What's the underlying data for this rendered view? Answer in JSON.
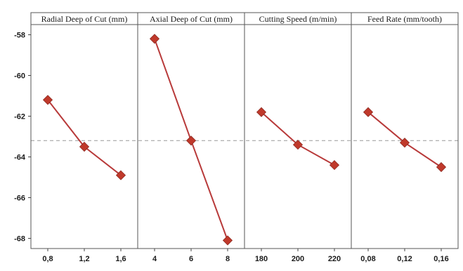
{
  "chart_data": {
    "type": "line",
    "title": "",
    "ylabel": "",
    "ylim": [
      -68.5,
      -57.5
    ],
    "y_ticks": [
      -58,
      -60,
      -62,
      -64,
      -66,
      -68
    ],
    "y_tick_labels": [
      "-58",
      "-60",
      "-62",
      "-64",
      "-66",
      "-68"
    ],
    "reference_line": {
      "y": -63.2,
      "style": "dashed"
    },
    "grid": false,
    "colors": {
      "line": "#b83a3a",
      "marker": "#c0392b",
      "reference": "#999999"
    },
    "panels": [
      {
        "title": "Radial Deep of Cut (mm)",
        "categories": [
          "0,8",
          "1,2",
          "1,6"
        ],
        "values": [
          -61.2,
          -63.5,
          -64.9
        ]
      },
      {
        "title": "Axial Deep of Cut (mm)",
        "categories": [
          "4",
          "6",
          "8"
        ],
        "values": [
          -58.2,
          -63.2,
          -68.1
        ]
      },
      {
        "title": "Cutting Speed (m/min)",
        "categories": [
          "180",
          "200",
          "220"
        ],
        "values": [
          -61.8,
          -63.4,
          -64.4
        ]
      },
      {
        "title": "Feed Rate (mm/tooth)",
        "categories": [
          "0,08",
          "0,12",
          "0,16"
        ],
        "values": [
          -61.8,
          -63.3,
          -64.5
        ]
      }
    ]
  }
}
